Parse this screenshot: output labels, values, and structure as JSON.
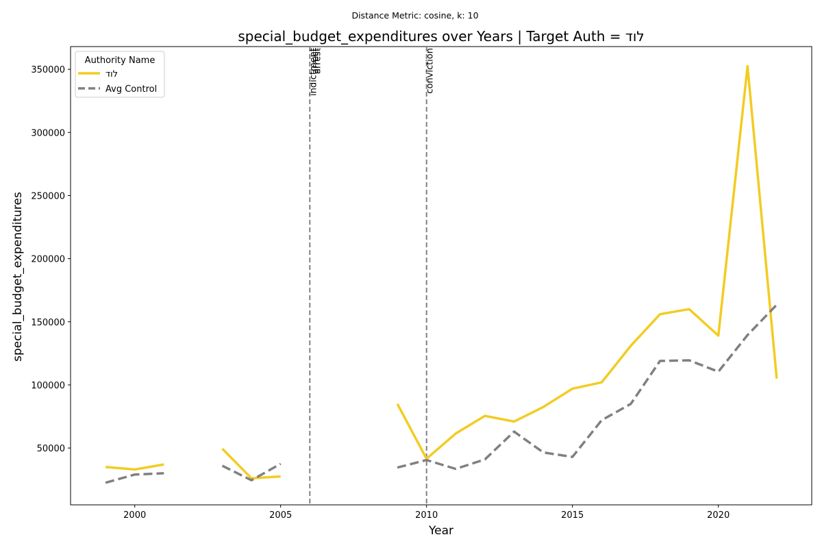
{
  "suptitle": "Distance Metric: cosine, k: 10",
  "chart_data": {
    "type": "line",
    "title": "special_budget_expenditures over Years | Target Auth = לוד",
    "xlabel": "Year",
    "ylabel": "special_budget_expenditures",
    "xlim": [
      1997.8,
      2023.2
    ],
    "ylim": [
      5000,
      368000
    ],
    "x_ticks": [
      2000,
      2005,
      2010,
      2015,
      2020
    ],
    "y_ticks": [
      50000,
      100000,
      150000,
      200000,
      250000,
      300000,
      350000
    ],
    "grid": false,
    "legend": {
      "title": "Authority Name",
      "placement": "upper-left"
    },
    "series": [
      {
        "name": "לוד",
        "color": "#f2cc22",
        "style": "solid",
        "points": [
          [
            1999,
            35000
          ],
          [
            2000,
            33000
          ],
          [
            2001,
            37000
          ],
          [
            2002,
            null
          ],
          [
            2003,
            49500
          ],
          [
            2004,
            26000
          ],
          [
            2005,
            27500
          ],
          [
            2006,
            null
          ],
          [
            2007,
            null
          ],
          [
            2008,
            null
          ],
          [
            2009,
            85000
          ],
          [
            2010,
            41500
          ],
          [
            2011,
            61500
          ],
          [
            2012,
            75500
          ],
          [
            2013,
            71000
          ],
          [
            2014,
            82500
          ],
          [
            2015,
            97000
          ],
          [
            2016,
            102000
          ],
          [
            2017,
            131000
          ],
          [
            2018,
            156000
          ],
          [
            2019,
            160000
          ],
          [
            2020,
            139000
          ],
          [
            2021,
            352500
          ],
          [
            2022,
            105000
          ]
        ]
      },
      {
        "name": "Avg Control",
        "color": "#808080",
        "style": "dashed",
        "points": [
          [
            1999,
            22500
          ],
          [
            2000,
            29000
          ],
          [
            2001,
            30000
          ],
          [
            2002,
            null
          ],
          [
            2003,
            36000
          ],
          [
            2004,
            24500
          ],
          [
            2005,
            37500
          ],
          [
            2006,
            null
          ],
          [
            2007,
            null
          ],
          [
            2008,
            null
          ],
          [
            2009,
            34500
          ],
          [
            2010,
            40500
          ],
          [
            2011,
            33500
          ],
          [
            2012,
            41000
          ],
          [
            2013,
            63000
          ],
          [
            2014,
            46500
          ],
          [
            2015,
            43000
          ],
          [
            2016,
            72000
          ],
          [
            2017,
            85000
          ],
          [
            2018,
            119000
          ],
          [
            2019,
            119500
          ],
          [
            2020,
            110500
          ],
          [
            2021,
            139500
          ],
          [
            2022,
            163500
          ]
        ]
      }
    ],
    "annotations": [
      {
        "x": 2006,
        "labels": [
          "indictment",
          "arrest",
          "arrest"
        ]
      },
      {
        "x": 2010,
        "labels": [
          "conviction"
        ]
      }
    ]
  }
}
